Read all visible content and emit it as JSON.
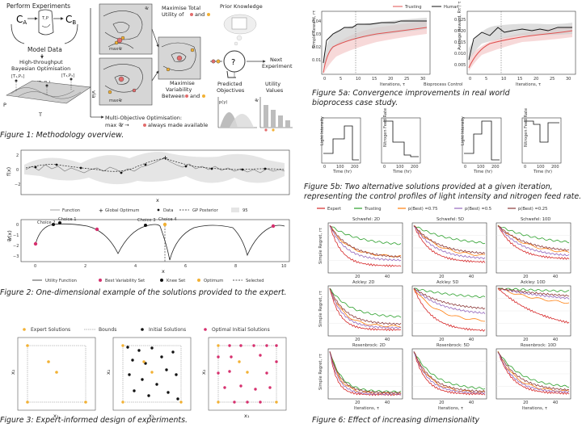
{
  "fig1": {
    "perform_experiments": "Perform Experiments",
    "ca": "C",
    "ca_sub": "A",
    "cb": "C",
    "cb_sub": "B",
    "tp": "T,P",
    "model_data": "Model Data",
    "hto_line1": "High-throughput",
    "hto_line2": "Bayesian Optimisation",
    "t1p1": "[T₁,P₁]",
    "t2p2": "[T₂,P₂]",
    "t3p3": "[T₃,P₃]",
    "axis_p": "P",
    "axis_t": "T",
    "via": "via",
    "u_label": "𝒰",
    "max_u": "max𝒰",
    "maximise_total_line1": "Maximise Total",
    "maximise_total_line2": "Utility of",
    "maximise_total_and": "and",
    "maximise_var_line1": "Maximise",
    "maximise_var_line2": "Variability",
    "maximise_var_line3": "Between",
    "maximise_var_and": "and",
    "prior_knowledge": "Prior Knowledge",
    "next_line1": "Next",
    "next_line2": "Experiment",
    "predicted_line1": "Predicted",
    "predicted_line2": "Objectives",
    "utility_line1": "Utility",
    "utility_line2": "Values",
    "py": "p(y)",
    "u_axis": "𝒰",
    "mo_line1": "Multi-Objective Optimisation:",
    "mo_line2": "max 𝒰 →",
    "mo_line2b": "always made available",
    "caption": "Figure 1: Methodology overview."
  },
  "fig2": {
    "top_ylabel": "f(x)",
    "top_xlabel": "x",
    "bottom_ylabel": "𝒰(x)",
    "bottom_xlabel": "x",
    "yticks_top": [
      "2",
      "0",
      "−2"
    ],
    "xticks": [
      "0",
      "2",
      "4",
      "6",
      "8",
      "10"
    ],
    "yticks_bottom": [
      "0",
      "−1",
      "−2",
      "−3"
    ],
    "choices": [
      "Choice 2",
      "Choice 1",
      "Choice 3",
      "Choice 4"
    ],
    "legend_top": [
      "Function",
      "Global Optimum",
      "Data",
      "GP Posterior",
      "95"
    ],
    "legend_bottom": [
      "Utility Function",
      "Best Variability Set",
      "Knee Set",
      "Optimum",
      "Selected"
    ],
    "caption": "Figure 2: One-dimensional example of the solutions provided to the expert."
  },
  "fig3": {
    "legend": [
      "Expert Solutions",
      "Bounds",
      "Initial Solutions",
      "Optimal Initial Solutions"
    ],
    "x1": "x₁",
    "x2": "x₂",
    "caption": "Figure 3: Expert-informed design of experiments."
  },
  "fig5a": {
    "legend": [
      "Trusting",
      "Human"
    ],
    "left_ylabel": "Simple Reward, rτ",
    "right_ylabel": "Average Reward, Rτ / τ",
    "xlabel": "Iterations, τ",
    "middle_label": "Bioprocess Control",
    "xticks": [
      "0",
      "5",
      "10",
      "15",
      "20",
      "25",
      "30"
    ],
    "left_yticks": [
      "0.04",
      "0.03",
      "0.02",
      "0.01"
    ],
    "right_yticks": [
      "0.025",
      "0.020",
      "0.015",
      "0.010",
      "0.005"
    ],
    "caption_line1": "Figure 5a: Convergence improvements in real world",
    "caption_line2": "bioprocess case study."
  },
  "fig5b": {
    "ylabel_light": "Light Intensity",
    "ylabel_nitrogen": "Nitrogen Feed Rate",
    "xlabel": "Time (hr)",
    "xticks": [
      "0",
      "100",
      "200"
    ],
    "caption_line1": "Figure 5b: Two alternative solutions provided at a given iteration,",
    "caption_line2": "representing the control profiles of light intensity and nitrogen feed rate."
  },
  "fig6": {
    "legend": [
      "Expert",
      "Trusting",
      "p(Best) =0.75",
      "p(Best) =0.5",
      "p(Best) =0.25"
    ],
    "colors": [
      "#d62728",
      "#2ca02c",
      "#ff7f0e",
      "#9467bd",
      "#8c3a3a"
    ],
    "titles": [
      "Schwefel: 2D",
      "Schwefel: 5D",
      "Schwefel: 10D",
      "Ackley: 2D",
      "Ackley: 5D",
      "Ackley: 10D",
      "Rosenbrock: 2D",
      "Rosenbrock: 5D",
      "Rosenbrock: 10D"
    ],
    "ylabel": "Simple Regret, rτ",
    "xlabel": "Iterations, τ",
    "xticks": [
      "20",
      "40"
    ],
    "caption": "Figure 6: Effect of increasing dimensionality"
  }
}
